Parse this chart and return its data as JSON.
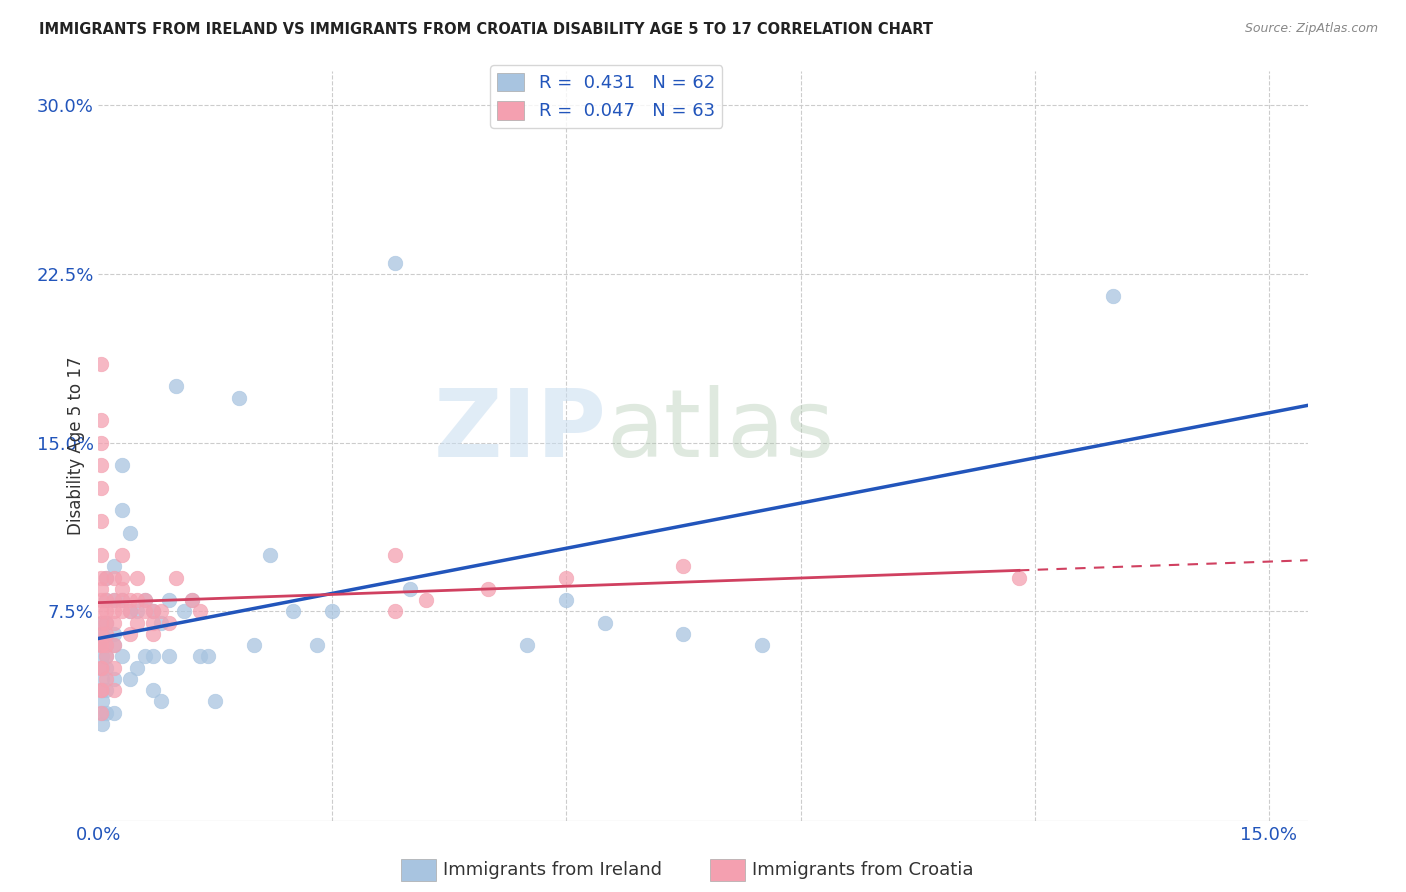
{
  "title": "IMMIGRANTS FROM IRELAND VS IMMIGRANTS FROM CROATIA DISABILITY AGE 5 TO 17 CORRELATION CHART",
  "source": "Source: ZipAtlas.com",
  "xlabel_ireland": "Immigrants from Ireland",
  "xlabel_croatia": "Immigrants from Croatia",
  "ylabel": "Disability Age 5 to 17",
  "xlim": [
    0.0,
    0.155
  ],
  "ylim": [
    -0.018,
    0.315
  ],
  "ireland_R": 0.431,
  "ireland_N": 62,
  "croatia_R": 0.047,
  "croatia_N": 63,
  "ireland_color": "#a8c4e0",
  "croatia_color": "#f4a0b0",
  "ireland_line_color": "#2255bb",
  "croatia_line_color": "#d04060",
  "watermark_zip": "ZIP",
  "watermark_atlas": "atlas",
  "ireland_x": [
    0.0005,
    0.0005,
    0.0005,
    0.0005,
    0.0005,
    0.0005,
    0.0005,
    0.0005,
    0.0005,
    0.0005,
    0.001,
    0.001,
    0.001,
    0.001,
    0.001,
    0.001,
    0.001,
    0.001,
    0.002,
    0.002,
    0.002,
    0.002,
    0.002,
    0.002,
    0.003,
    0.003,
    0.003,
    0.003,
    0.004,
    0.004,
    0.004,
    0.005,
    0.005,
    0.006,
    0.006,
    0.007,
    0.007,
    0.007,
    0.008,
    0.008,
    0.009,
    0.009,
    0.01,
    0.011,
    0.012,
    0.013,
    0.014,
    0.015,
    0.018,
    0.02,
    0.022,
    0.025,
    0.028,
    0.03,
    0.038,
    0.04,
    0.055,
    0.06,
    0.065,
    0.075,
    0.085,
    0.13
  ],
  "ireland_y": [
    0.05,
    0.06,
    0.04,
    0.03,
    0.07,
    0.055,
    0.045,
    0.035,
    0.065,
    0.025,
    0.07,
    0.08,
    0.055,
    0.04,
    0.03,
    0.09,
    0.06,
    0.05,
    0.08,
    0.065,
    0.045,
    0.03,
    0.095,
    0.06,
    0.12,
    0.14,
    0.08,
    0.055,
    0.11,
    0.075,
    0.045,
    0.075,
    0.05,
    0.08,
    0.055,
    0.075,
    0.055,
    0.04,
    0.07,
    0.035,
    0.08,
    0.055,
    0.175,
    0.075,
    0.08,
    0.055,
    0.055,
    0.035,
    0.17,
    0.06,
    0.1,
    0.075,
    0.06,
    0.075,
    0.23,
    0.085,
    0.06,
    0.08,
    0.07,
    0.065,
    0.06,
    0.215
  ],
  "croatia_x": [
    0.0003,
    0.0003,
    0.0003,
    0.0003,
    0.0003,
    0.0003,
    0.0003,
    0.0003,
    0.0003,
    0.0003,
    0.0003,
    0.0003,
    0.0003,
    0.0003,
    0.0003,
    0.0003,
    0.0003,
    0.0003,
    0.0003,
    0.0003,
    0.001,
    0.001,
    0.001,
    0.001,
    0.001,
    0.001,
    0.001,
    0.001,
    0.002,
    0.002,
    0.002,
    0.002,
    0.002,
    0.002,
    0.002,
    0.003,
    0.003,
    0.003,
    0.003,
    0.003,
    0.004,
    0.004,
    0.004,
    0.005,
    0.005,
    0.005,
    0.006,
    0.006,
    0.007,
    0.007,
    0.007,
    0.008,
    0.009,
    0.01,
    0.012,
    0.013,
    0.038,
    0.075,
    0.118,
    0.038,
    0.042,
    0.05,
    0.06
  ],
  "croatia_y": [
    0.15,
    0.185,
    0.16,
    0.14,
    0.13,
    0.115,
    0.1,
    0.085,
    0.07,
    0.06,
    0.05,
    0.04,
    0.03,
    0.06,
    0.075,
    0.09,
    0.05,
    0.04,
    0.065,
    0.08,
    0.09,
    0.08,
    0.075,
    0.07,
    0.065,
    0.06,
    0.055,
    0.045,
    0.09,
    0.08,
    0.075,
    0.07,
    0.06,
    0.05,
    0.04,
    0.1,
    0.09,
    0.085,
    0.08,
    0.075,
    0.08,
    0.075,
    0.065,
    0.09,
    0.08,
    0.07,
    0.08,
    0.075,
    0.075,
    0.07,
    0.065,
    0.075,
    0.07,
    0.09,
    0.08,
    0.075,
    0.1,
    0.095,
    0.09,
    0.075,
    0.08,
    0.085,
    0.09
  ]
}
